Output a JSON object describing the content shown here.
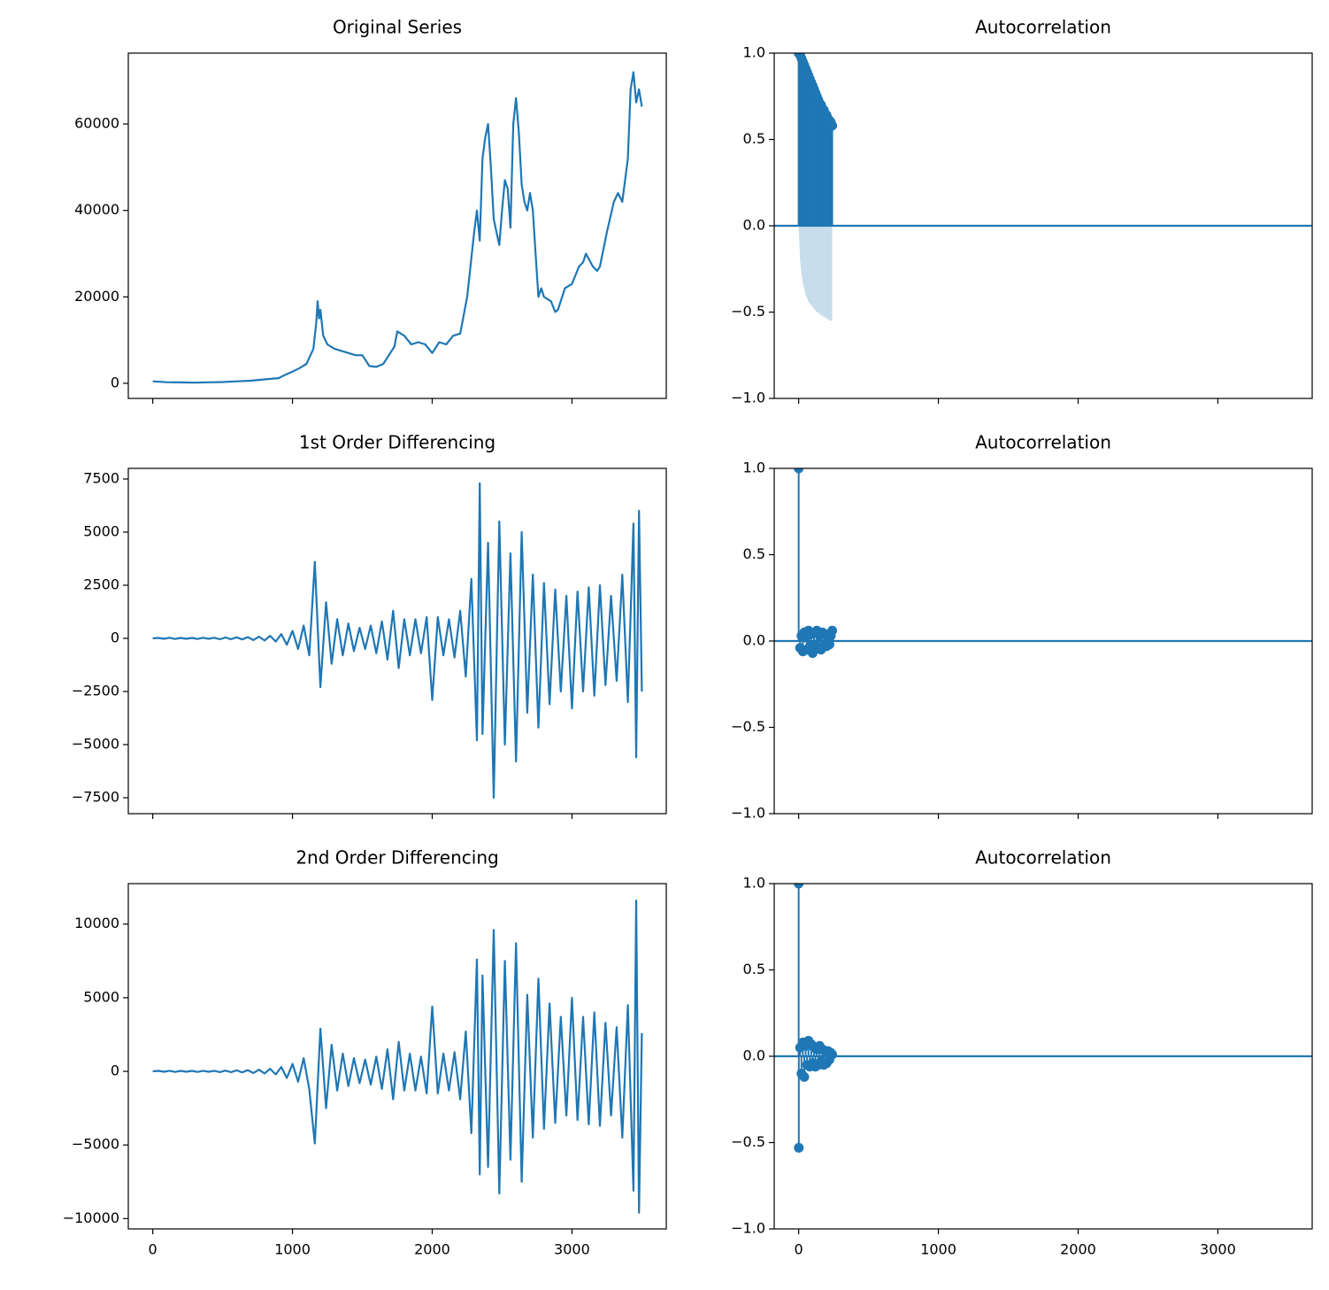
{
  "chart_data": [
    {
      "type": "line",
      "title": "Original Series",
      "color": "#1f77b4",
      "xlim": [
        -175,
        3675
      ],
      "xticks": [
        0,
        1000,
        2000,
        3000
      ],
      "show_xticklabels": false,
      "ylim": [
        -3500,
        76400
      ],
      "yticks": [
        0,
        20000,
        40000,
        60000
      ],
      "x": [
        0,
        100,
        200,
        300,
        400,
        500,
        600,
        700,
        800,
        900,
        950,
        1000,
        1050,
        1100,
        1150,
        1170,
        1180,
        1190,
        1200,
        1220,
        1250,
        1300,
        1350,
        1400,
        1450,
        1500,
        1550,
        1600,
        1650,
        1700,
        1730,
        1750,
        1800,
        1850,
        1900,
        1950,
        2000,
        2050,
        2100,
        2150,
        2200,
        2250,
        2300,
        2320,
        2340,
        2360,
        2380,
        2400,
        2420,
        2440,
        2460,
        2480,
        2500,
        2520,
        2540,
        2560,
        2580,
        2600,
        2620,
        2640,
        2660,
        2680,
        2700,
        2720,
        2740,
        2760,
        2780,
        2800,
        2850,
        2880,
        2900,
        2950,
        3000,
        3050,
        3080,
        3100,
        3150,
        3180,
        3200,
        3250,
        3300,
        3330,
        3360,
        3400,
        3420,
        3440,
        3460,
        3480,
        3500
      ],
      "values": [
        450,
        250,
        200,
        150,
        230,
        300,
        450,
        600,
        900,
        1200,
        2000,
        2700,
        3500,
        4500,
        8000,
        14000,
        19000,
        15000,
        17000,
        11000,
        9000,
        8000,
        7500,
        7000,
        6500,
        6500,
        4000,
        3800,
        4500,
        7000,
        8500,
        12000,
        11000,
        9000,
        9500,
        9000,
        7000,
        9500,
        9000,
        11000,
        11500,
        20000,
        35000,
        40000,
        33000,
        52000,
        57000,
        60000,
        50000,
        38000,
        35000,
        32000,
        40000,
        47000,
        45000,
        36000,
        60000,
        66000,
        58000,
        46000,
        42000,
        40000,
        44000,
        40000,
        30000,
        20000,
        22000,
        20000,
        19000,
        16500,
        17000,
        22000,
        23000,
        27000,
        28000,
        30000,
        27000,
        26000,
        27000,
        35000,
        42000,
        44000,
        42000,
        52000,
        68000,
        72000,
        65000,
        68000,
        64000
      ]
    },
    {
      "type": "stem",
      "title": "Autocorrelation",
      "color": "#1f77b4",
      "xlim": [
        -175,
        3675
      ],
      "xticks": [
        0,
        1000,
        2000,
        3000
      ],
      "show_xticklabels": false,
      "ylim": [
        -1,
        1
      ],
      "yticks": [
        {
          "value": -1,
          "label": "−1.0"
        },
        {
          "value": -0.5,
          "label": "−0.5"
        },
        {
          "value": 0,
          "label": "0.0"
        },
        0.5,
        {
          "value": 1,
          "label": "1.0"
        }
      ],
      "x": [
        0,
        10,
        20,
        30,
        40,
        50,
        60,
        70,
        80,
        90,
        100,
        110,
        120,
        130,
        140,
        150,
        160,
        170,
        180,
        190,
        200,
        210,
        220,
        230,
        240
      ],
      "values": [
        1.0,
        0.99,
        0.97,
        0.95,
        0.93,
        0.91,
        0.89,
        0.87,
        0.85,
        0.83,
        0.81,
        0.79,
        0.77,
        0.75,
        0.73,
        0.71,
        0.7,
        0.68,
        0.67,
        0.65,
        0.64,
        0.62,
        0.61,
        0.6,
        0.58
      ],
      "band_upper": [
        0,
        0.2,
        0.28,
        0.33,
        0.37,
        0.4,
        0.42,
        0.44,
        0.45,
        0.46,
        0.47,
        0.48,
        0.49,
        0.5,
        0.5,
        0.51,
        0.52,
        0.52,
        0.53,
        0.53,
        0.54,
        0.54,
        0.55,
        0.55,
        0.55
      ],
      "band_lower": [
        0,
        -0.2,
        -0.28,
        -0.33,
        -0.37,
        -0.4,
        -0.42,
        -0.44,
        -0.45,
        -0.46,
        -0.47,
        -0.48,
        -0.49,
        -0.5,
        -0.5,
        -0.51,
        -0.52,
        -0.52,
        -0.53,
        -0.53,
        -0.54,
        -0.54,
        -0.55,
        -0.55,
        -0.55
      ]
    },
    {
      "type": "line",
      "title": "1st Order Differencing",
      "color": "#1f77b4",
      "xlim": [
        -175,
        3675
      ],
      "xticks": [
        0,
        1000,
        2000,
        3000
      ],
      "show_xticklabels": false,
      "ylim": [
        -8250,
        8000
      ],
      "yticks": [
        {
          "value": -7500,
          "label": "−7500"
        },
        {
          "value": -5000,
          "label": "−5000"
        },
        {
          "value": -2500,
          "label": "−2500"
        },
        0,
        2500,
        5000,
        7500
      ],
      "x": [
        0,
        40,
        80,
        120,
        160,
        200,
        240,
        280,
        320,
        360,
        400,
        440,
        480,
        520,
        560,
        600,
        640,
        680,
        720,
        760,
        800,
        840,
        880,
        920,
        960,
        1000,
        1040,
        1080,
        1120,
        1160,
        1200,
        1240,
        1280,
        1320,
        1360,
        1400,
        1440,
        1480,
        1520,
        1560,
        1600,
        1640,
        1680,
        1720,
        1760,
        1800,
        1840,
        1880,
        1920,
        1960,
        2000,
        2040,
        2080,
        2120,
        2160,
        2200,
        2240,
        2280,
        2320,
        2340,
        2360,
        2400,
        2440,
        2480,
        2520,
        2560,
        2600,
        2640,
        2680,
        2720,
        2760,
        2800,
        2840,
        2880,
        2920,
        2960,
        3000,
        3040,
        3080,
        3120,
        3160,
        3200,
        3240,
        3280,
        3320,
        3360,
        3400,
        3440,
        3460,
        3480,
        3500
      ],
      "values": [
        0,
        20,
        -20,
        30,
        -30,
        20,
        -20,
        20,
        -30,
        30,
        -20,
        30,
        -40,
        40,
        -40,
        50,
        -50,
        60,
        -80,
        80,
        -100,
        120,
        -150,
        200,
        -300,
        350,
        -500,
        600,
        -800,
        3600,
        -2300,
        1700,
        -1200,
        900,
        -800,
        700,
        -600,
        500,
        -500,
        600,
        -700,
        800,
        -1000,
        1300,
        -1400,
        900,
        -800,
        900,
        -700,
        1000,
        -2900,
        1000,
        -800,
        900,
        -900,
        1300,
        -1800,
        2800,
        -4800,
        7300,
        -4500,
        4500,
        -7500,
        5500,
        -5000,
        4000,
        -5800,
        5000,
        -3500,
        3000,
        -4200,
        2600,
        -3100,
        2300,
        -2500,
        2000,
        -3300,
        2200,
        -2500,
        2400,
        -2700,
        2500,
        -2200,
        2000,
        -2000,
        3000,
        -3000,
        5400,
        -5600,
        6000,
        -2500
      ]
    },
    {
      "type": "stem",
      "title": "Autocorrelation",
      "color": "#1f77b4",
      "xlim": [
        -175,
        3675
      ],
      "xticks": [
        0,
        1000,
        2000,
        3000
      ],
      "show_xticklabels": false,
      "ylim": [
        -1,
        1
      ],
      "yticks": [
        {
          "value": -1,
          "label": "−1.0"
        },
        {
          "value": -0.5,
          "label": "−0.5"
        },
        {
          "value": 0,
          "label": "0.0"
        },
        0.5,
        {
          "value": 1,
          "label": "1.0"
        }
      ],
      "x": [
        0,
        10,
        20,
        30,
        40,
        50,
        60,
        70,
        80,
        90,
        100,
        110,
        120,
        130,
        140,
        150,
        160,
        170,
        180,
        190,
        200,
        210,
        220,
        230,
        240
      ],
      "values": [
        1,
        -0.04,
        0.03,
        -0.06,
        0.05,
        0.02,
        -0.05,
        0.06,
        -0.03,
        0.04,
        -0.07,
        0.05,
        -0.02,
        0.06,
        -0.04,
        0.03,
        -0.05,
        0.05,
        -0.03,
        0.04,
        -0.03,
        0.02,
        -0.02,
        0.03,
        0.06
      ]
    },
    {
      "type": "line",
      "title": "2nd Order Differencing",
      "color": "#1f77b4",
      "xlim": [
        -175,
        3675
      ],
      "xticks": [
        0,
        1000,
        2000,
        3000
      ],
      "show_xticklabels": true,
      "ylim": [
        -10700,
        12750
      ],
      "yticks": [
        {
          "value": -10000,
          "label": "−10000"
        },
        {
          "value": -5000,
          "label": "−5000"
        },
        0,
        5000,
        10000
      ],
      "x": [
        0,
        40,
        80,
        120,
        160,
        200,
        240,
        280,
        320,
        360,
        400,
        440,
        480,
        520,
        560,
        600,
        640,
        680,
        720,
        760,
        800,
        840,
        880,
        920,
        960,
        1000,
        1040,
        1080,
        1120,
        1160,
        1200,
        1240,
        1280,
        1320,
        1360,
        1400,
        1440,
        1480,
        1520,
        1560,
        1600,
        1640,
        1680,
        1720,
        1760,
        1800,
        1840,
        1880,
        1920,
        1960,
        2000,
        2040,
        2080,
        2120,
        2160,
        2200,
        2240,
        2280,
        2320,
        2340,
        2360,
        2400,
        2440,
        2480,
        2520,
        2560,
        2600,
        2640,
        2680,
        2720,
        2760,
        2800,
        2840,
        2880,
        2920,
        2960,
        3000,
        3040,
        3080,
        3120,
        3160,
        3200,
        3240,
        3280,
        3320,
        3360,
        3400,
        3440,
        3460,
        3480,
        3500
      ],
      "values": [
        0,
        30,
        -30,
        40,
        -40,
        30,
        -30,
        30,
        -40,
        40,
        -30,
        40,
        -50,
        50,
        -60,
        70,
        -70,
        80,
        -110,
        110,
        -140,
        170,
        -210,
        300,
        -450,
        500,
        -700,
        900,
        -1200,
        -4900,
        2900,
        -2500,
        1800,
        -1300,
        1200,
        -1000,
        900,
        -800,
        800,
        -900,
        1000,
        -1200,
        1500,
        -1900,
        2000,
        -1300,
        1200,
        -1300,
        1000,
        -1500,
        4400,
        -1500,
        1200,
        -1300,
        1300,
        -1900,
        2700,
        -4200,
        7600,
        -7000,
        6500,
        -6500,
        9600,
        -8300,
        7500,
        -6000,
        8700,
        -7500,
        5200,
        -4500,
        6300,
        -3900,
        4600,
        -3500,
        3700,
        -3000,
        5000,
        -3300,
        3700,
        -3600,
        4000,
        -3700,
        3300,
        -3000,
        3000,
        -4500,
        4500,
        -8100,
        11600,
        -9600,
        2600
      ]
    },
    {
      "type": "stem",
      "title": "Autocorrelation",
      "color": "#1f77b4",
      "xlim": [
        -175,
        3675
      ],
      "xticks": [
        0,
        1000,
        2000,
        3000
      ],
      "show_xticklabels": true,
      "ylim": [
        -1,
        1
      ],
      "yticks": [
        {
          "value": -1,
          "label": "−1.0"
        },
        {
          "value": -0.5,
          "label": "−0.5"
        },
        {
          "value": 0,
          "label": "0.0"
        },
        0.5,
        {
          "value": 1,
          "label": "1.0"
        }
      ],
      "x": [
        0,
        1,
        10,
        20,
        30,
        40,
        50,
        60,
        70,
        80,
        90,
        100,
        110,
        120,
        130,
        140,
        150,
        160,
        170,
        180,
        190,
        200,
        210,
        220,
        230,
        240
      ],
      "values": [
        1,
        -0.53,
        0.05,
        -0.1,
        0.08,
        -0.12,
        0.06,
        -0.05,
        0.09,
        -0.06,
        0.07,
        -0.04,
        0.05,
        -0.06,
        0.04,
        -0.05,
        0.06,
        -0.03,
        0.04,
        -0.05,
        0.03,
        -0.04,
        0.03,
        -0.02,
        0.02,
        0.01
      ]
    }
  ]
}
